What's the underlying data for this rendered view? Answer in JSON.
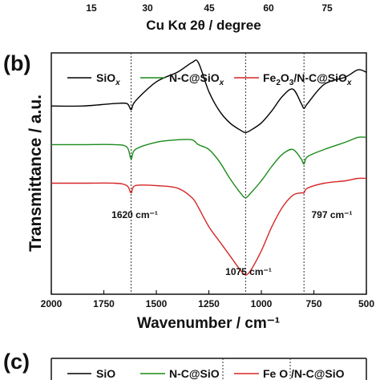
{
  "top_panel": {
    "tick_labels": [
      "15",
      "30",
      "45",
      "60",
      "75"
    ],
    "xlabel": "Cu Kα 2θ / degree"
  },
  "panel_b": {
    "label": "(b)",
    "ylabel": "Transmittance / a.u.",
    "xlabel": "Wavenumber / cm⁻¹",
    "annotations": [
      "1620 cm⁻¹",
      "1075 cm⁻¹",
      "797 cm⁻¹"
    ]
  },
  "panel_c": {
    "label": "(c)",
    "legend": [
      "SiO",
      "N-C@SiO",
      "Fe O /N-C@SiO"
    ]
  },
  "chart_data": {
    "type": "line",
    "title": "",
    "xlabel": "Wavenumber / cm⁻¹",
    "ylabel": "Transmittance / a.u.",
    "xlim": [
      2000,
      500
    ],
    "x_reversed": true,
    "xticks": [
      2000,
      1750,
      1500,
      1250,
      1000,
      750,
      500
    ],
    "yticks_shown": false,
    "grid": false,
    "legend_position": "top",
    "reference_lines": [
      1620,
      1075,
      797
    ],
    "series": [
      {
        "name": "SiOx",
        "color": "#000000",
        "x": [
          2000,
          1850,
          1700,
          1640,
          1620,
          1600,
          1500,
          1400,
          1330,
          1300,
          1250,
          1200,
          1150,
          1100,
          1075,
          1050,
          1000,
          950,
          900,
          850,
          810,
          797,
          780,
          700,
          600,
          540,
          500
        ],
        "y": [
          78,
          78,
          79,
          79,
          76.5,
          80,
          88,
          92,
          96,
          96,
          84,
          76,
          71,
          68,
          67,
          68,
          71,
          76,
          82,
          85,
          79,
          77,
          79,
          87,
          90,
          93,
          92
        ]
      },
      {
        "name": "N-C@SiOx",
        "color": "#1a8a1a",
        "x": [
          2000,
          1850,
          1700,
          1640,
          1620,
          1600,
          1500,
          1400,
          1330,
          1300,
          1250,
          1200,
          1150,
          1100,
          1075,
          1050,
          1000,
          950,
          900,
          850,
          810,
          797,
          780,
          700,
          600,
          540,
          500
        ],
        "y": [
          62,
          62,
          62,
          61,
          56,
          60,
          63,
          64,
          64,
          62,
          60,
          55,
          48,
          42,
          40,
          42,
          47,
          53,
          58,
          60,
          56,
          54,
          57,
          60,
          63,
          65,
          65
        ]
      },
      {
        "name": "Fe2O3/N-C@SiOx",
        "color": "#d62728",
        "x": [
          2000,
          1850,
          1700,
          1640,
          1620,
          1600,
          1500,
          1400,
          1330,
          1300,
          1250,
          1200,
          1150,
          1100,
          1075,
          1050,
          1000,
          950,
          900,
          850,
          810,
          797,
          780,
          700,
          600,
          540,
          500
        ],
        "y": [
          46,
          46,
          46,
          45,
          42,
          45,
          45,
          44,
          40,
          36,
          28,
          22,
          16,
          10,
          8,
          10,
          18,
          28,
          36,
          41,
          42,
          42,
          44,
          46,
          47,
          48,
          48
        ]
      }
    ]
  }
}
